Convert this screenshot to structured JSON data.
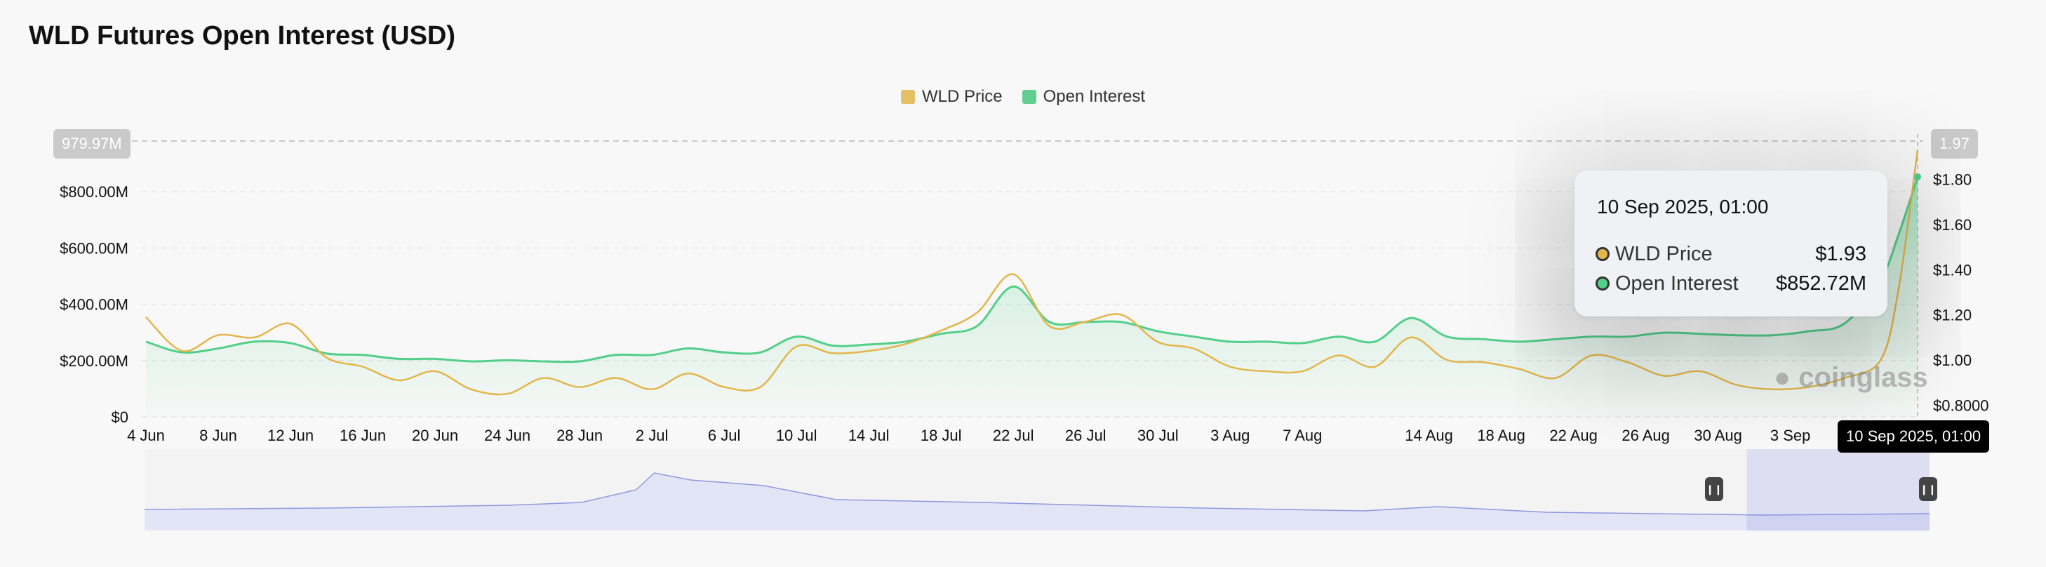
{
  "title": "WLD Futures Open Interest (USD)",
  "watermark": "coinglass",
  "colors": {
    "price": "#e3b64c",
    "open_interest": "#52cf89",
    "navigator": "#8f99e0"
  },
  "tooltip": {
    "date": "10 Sep 2025, 01:00",
    "rows": [
      {
        "label": "WLD Price",
        "value": "$1.93"
      },
      {
        "label": "Open Interest",
        "value": "$852.72M"
      }
    ]
  },
  "crosshair": {
    "left_value": "979.97M",
    "right_value": "1.97",
    "x_value": "10 Sep 2025, 01:00"
  },
  "chart_data": {
    "type": "line",
    "legend": [
      "WLD Price",
      "Open Interest"
    ],
    "legend_position": "top",
    "grid": true,
    "left_axis": {
      "ticks": [
        "$0",
        "$200.00M",
        "$400.00M",
        "$600.00M",
        "$800.00M"
      ],
      "tick_values": [
        0,
        200,
        400,
        600,
        800
      ],
      "range_millions": [
        0,
        979.97
      ]
    },
    "right_axis": {
      "ticks": [
        "$0.8000",
        "$1.00",
        "$1.20",
        "$1.40",
        "$1.60",
        "$1.80"
      ],
      "tick_values": [
        0.8,
        1.0,
        1.2,
        1.4,
        1.6,
        1.8
      ],
      "range": [
        0.748,
        1.97
      ]
    },
    "x_ticks": [
      "4 Jun",
      "8 Jun",
      "12 Jun",
      "16 Jun",
      "20 Jun",
      "24 Jun",
      "28 Jun",
      "2 Jul",
      "6 Jul",
      "10 Jul",
      "14 Jul",
      "18 Jul",
      "22 Jul",
      "26 Jul",
      "30 Jul",
      "3 Aug",
      "7 Aug",
      "14 Aug",
      "18 Aug",
      "22 Aug",
      "26 Aug",
      "30 Aug",
      "3 Sep"
    ],
    "x_tick_dates": [
      "2025-06-04",
      "2025-06-08",
      "2025-06-12",
      "2025-06-16",
      "2025-06-20",
      "2025-06-24",
      "2025-06-28",
      "2025-07-02",
      "2025-07-06",
      "2025-07-10",
      "2025-07-14",
      "2025-07-18",
      "2025-07-22",
      "2025-07-26",
      "2025-07-30",
      "2025-08-03",
      "2025-08-07",
      "2025-08-14",
      "2025-08-18",
      "2025-08-22",
      "2025-08-26",
      "2025-08-30",
      "2025-09-03"
    ],
    "x": [
      "2025-06-04",
      "2025-06-06",
      "2025-06-08",
      "2025-06-10",
      "2025-06-12",
      "2025-06-14",
      "2025-06-16",
      "2025-06-18",
      "2025-06-20",
      "2025-06-22",
      "2025-06-24",
      "2025-06-26",
      "2025-06-28",
      "2025-06-30",
      "2025-07-02",
      "2025-07-04",
      "2025-07-06",
      "2025-07-08",
      "2025-07-10",
      "2025-07-12",
      "2025-07-14",
      "2025-07-16",
      "2025-07-18",
      "2025-07-20",
      "2025-07-22",
      "2025-07-24",
      "2025-07-26",
      "2025-07-28",
      "2025-07-30",
      "2025-08-01",
      "2025-08-03",
      "2025-08-05",
      "2025-08-07",
      "2025-08-09",
      "2025-08-11",
      "2025-08-13",
      "2025-08-15",
      "2025-08-17",
      "2025-08-19",
      "2025-08-21",
      "2025-08-23",
      "2025-08-25",
      "2025-08-27",
      "2025-08-29",
      "2025-08-31",
      "2025-09-02",
      "2025-09-04",
      "2025-09-06",
      "2025-09-08",
      "2025-09-09",
      "2025-09-10T01:00"
    ],
    "series": [
      {
        "name": "WLD Price",
        "axis": "right",
        "values": [
          1.19,
          1.04,
          1.11,
          1.1,
          1.16,
          1.01,
          0.97,
          0.91,
          0.95,
          0.87,
          0.85,
          0.92,
          0.88,
          0.92,
          0.87,
          0.94,
          0.88,
          0.88,
          1.06,
          1.03,
          1.04,
          1.07,
          1.13,
          1.21,
          1.38,
          1.15,
          1.17,
          1.2,
          1.08,
          1.05,
          0.97,
          0.95,
          0.95,
          1.02,
          0.97,
          1.1,
          1.0,
          0.99,
          0.96,
          0.92,
          1.02,
          0.99,
          0.93,
          0.95,
          0.89,
          0.87,
          0.88,
          0.92,
          1.0,
          1.32,
          1.93
        ]
      },
      {
        "name": "Open Interest",
        "axis": "left",
        "unit": "USD millions",
        "values": [
          267,
          229,
          243,
          267,
          262,
          225,
          220,
          206,
          206,
          197,
          201,
          197,
          197,
          220,
          220,
          243,
          229,
          229,
          285,
          253,
          257,
          267,
          295,
          323,
          463,
          337,
          337,
          337,
          304,
          285,
          267,
          267,
          262,
          285,
          267,
          351,
          285,
          276,
          267,
          276,
          285,
          285,
          299,
          295,
          290,
          290,
          304,
          332,
          487,
          650,
          852.72
        ]
      }
    ],
    "navigator": {
      "x": [
        "2025-06-04",
        "2025-06-14",
        "2025-06-24",
        "2025-06-28",
        "2025-07-01",
        "2025-07-02",
        "2025-07-04",
        "2025-07-08",
        "2025-07-12",
        "2025-07-20",
        "2025-08-01",
        "2025-08-10",
        "2025-08-14",
        "2025-08-20",
        "2025-09-01",
        "2025-09-10T01:00"
      ],
      "values": [
        30,
        32,
        36,
        40,
        58,
        82,
        72,
        64,
        44,
        40,
        32,
        28,
        34,
        26,
        22,
        24
      ],
      "selection": [
        "2025-08-31",
        "2025-09-10T01:00"
      ]
    }
  }
}
